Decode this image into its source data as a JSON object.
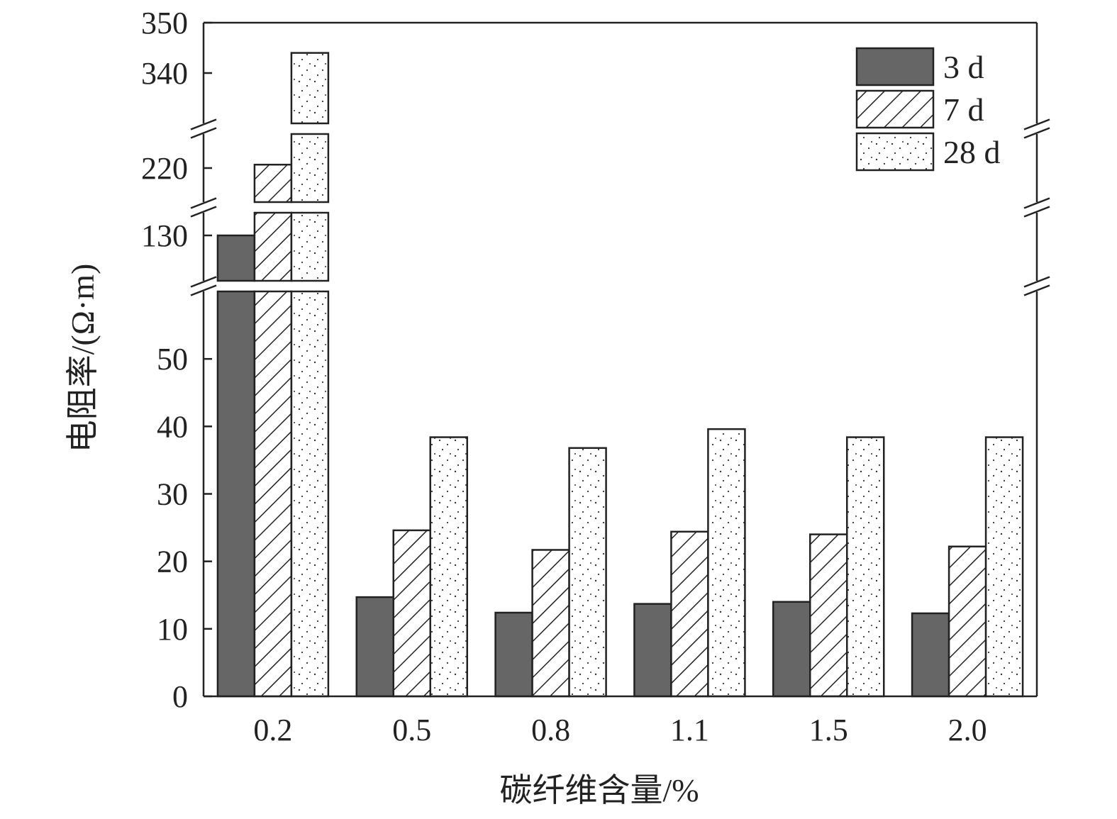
{
  "chart_data": {
    "type": "bar",
    "xlabel": "碳纤维含量/%",
    "ylabel": "电阻率/(Ω·m)",
    "categories": [
      "0.2",
      "0.5",
      "0.8",
      "1.1",
      "1.5",
      "2.0"
    ],
    "series": [
      {
        "name": "3 d",
        "pattern": "solid",
        "color": "#666666",
        "values": [
          130,
          14.7,
          12.4,
          13.7,
          14.0,
          12.3
        ]
      },
      {
        "name": "7 d",
        "pattern": "hatched",
        "color": "#ffffff",
        "values": [
          221,
          24.6,
          21.7,
          24.4,
          24.0,
          22.2
        ]
      },
      {
        "name": "28 d",
        "pattern": "dotted",
        "color": "#ffffff",
        "values": [
          344,
          38.4,
          36.8,
          39.6,
          38.4,
          38.4
        ]
      }
    ],
    "y_axis": {
      "broken": true,
      "segments": [
        {
          "range": [
            0,
            60
          ],
          "ticks": [
            "0",
            "10",
            "20",
            "30",
            "40",
            "50"
          ]
        },
        {
          "range": [
            120,
            135
          ],
          "ticks": [
            "130"
          ]
        },
        {
          "range": [
            210,
            230
          ],
          "ticks": [
            "220"
          ]
        },
        {
          "range": [
            330,
            350
          ],
          "ticks": [
            "340",
            "350"
          ]
        }
      ]
    },
    "legend": {
      "position": "top-right"
    },
    "grid": false
  }
}
